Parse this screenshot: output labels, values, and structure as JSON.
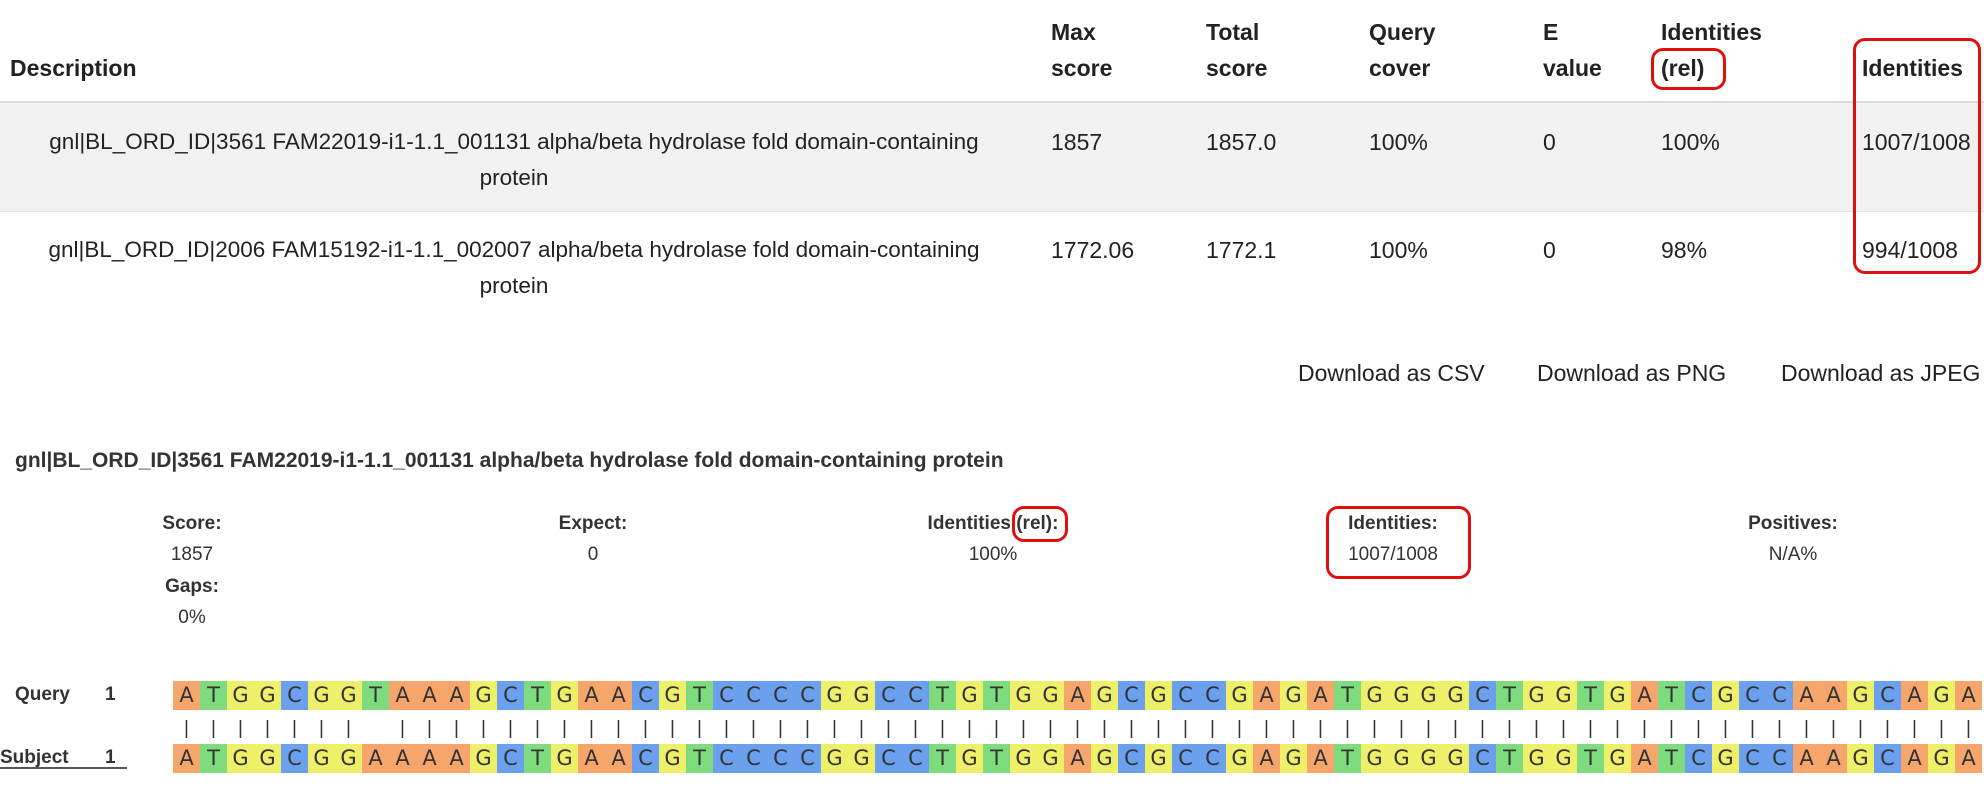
{
  "table": {
    "headers": [
      "Description",
      "Max score",
      "Total score",
      "Query cover",
      "E value",
      "Identities (rel)",
      "Identities"
    ],
    "rows": [
      [
        "gnl|BL_ORD_ID|3561 FAM22019-i1-1.1_001131 alpha/beta hydrolase fold domain-containing protein",
        "1857",
        "1857.0",
        "100%",
        "0",
        "100%",
        "1007/1008"
      ],
      [
        "gnl|BL_ORD_ID|2006 FAM15192-i1-1.1_002007 alpha/beta hydrolase fold domain-containing protein",
        "1772.06",
        "1772.1",
        "100%",
        "0",
        "98%",
        "994/1008"
      ]
    ]
  },
  "downloads": [
    "Download as CSV",
    "Download as PNG",
    "Download as JPEG"
  ],
  "hit": {
    "title": "gnl|BL_ORD_ID|3561 FAM22019-i1-1.1_001131 alpha/beta hydrolase fold domain-containing protein",
    "stats": [
      {
        "label": "Score:",
        "value": "1857"
      },
      {
        "label": "Expect:",
        "value": "0"
      },
      {
        "label": "Identities (rel):",
        "value": "100%"
      },
      {
        "label": "Identities:",
        "value": "1007/1008"
      },
      {
        "label": "Positives:",
        "value": "N/A%"
      },
      {
        "label": "Gaps:",
        "value": "0%"
      }
    ]
  },
  "alignment": {
    "query_label": "Query",
    "query_start": "1",
    "query_seq": "ATGGCGGTAAAGCTGAACGTCCCCGGCCTGTGGAGCGCCGAGATGGGGCTGGTGATCGCCAAGCAGA",
    "match": "||||||| |||||||||||||||||||||||||||||||||||||||||||||||||||||||||||",
    "subject_label": "Subject",
    "subject_start": "1",
    "subject_seq": "ATGGCGGAAAAGCTGAACGTCCCCGGCCTGTGGAGCGCCGAGATGGGGCTGGTGATCGCCAAGCAGA"
  }
}
